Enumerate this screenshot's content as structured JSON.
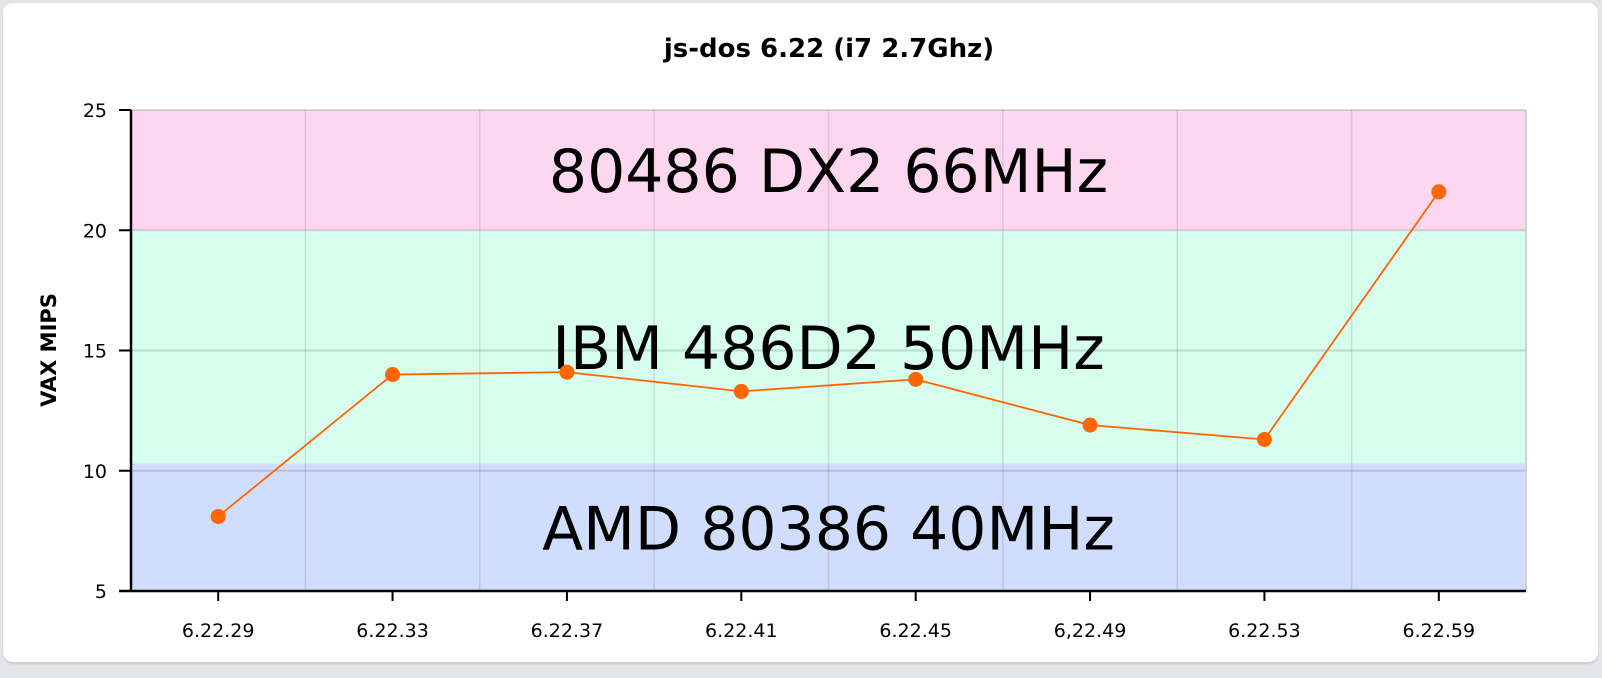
{
  "chart_data": {
    "type": "line",
    "title": "js-dos 6.22 (i7 2.7Ghz)",
    "xlabel": "",
    "ylabel": "VAX MIPS",
    "ylim": [
      5,
      25
    ],
    "yticks": [
      5,
      10,
      15,
      20,
      25
    ],
    "grid": true,
    "legend": "none",
    "categories": [
      "6.22.29",
      "6.22.33",
      "6.22.37",
      "6.22.41",
      "6.22.45",
      "6,22.49",
      "6.22.53",
      "6.22.59"
    ],
    "series": [
      {
        "name": "VAX MIPS",
        "color": "#ff6600",
        "values": [
          8.1,
          14.0,
          14.1,
          13.3,
          13.8,
          11.9,
          11.3,
          21.6
        ]
      }
    ],
    "bands": [
      {
        "label": "80486 DX2 66MHz",
        "from": 20,
        "to": 25,
        "color": "#fdd6ef"
      },
      {
        "label": "IBM 486D2 50MHz",
        "from": 10.3,
        "to": 20,
        "color": "#d6fdee"
      },
      {
        "label": "AMD 80386 40MHz",
        "from": 5,
        "to": 10.3,
        "color": "#d1ddfd"
      }
    ]
  },
  "colors": {
    "line": "#ff6600",
    "grid": "#cccccc",
    "axis": "#000000",
    "background": "#ffffff",
    "frame": "#e3e5e8"
  }
}
